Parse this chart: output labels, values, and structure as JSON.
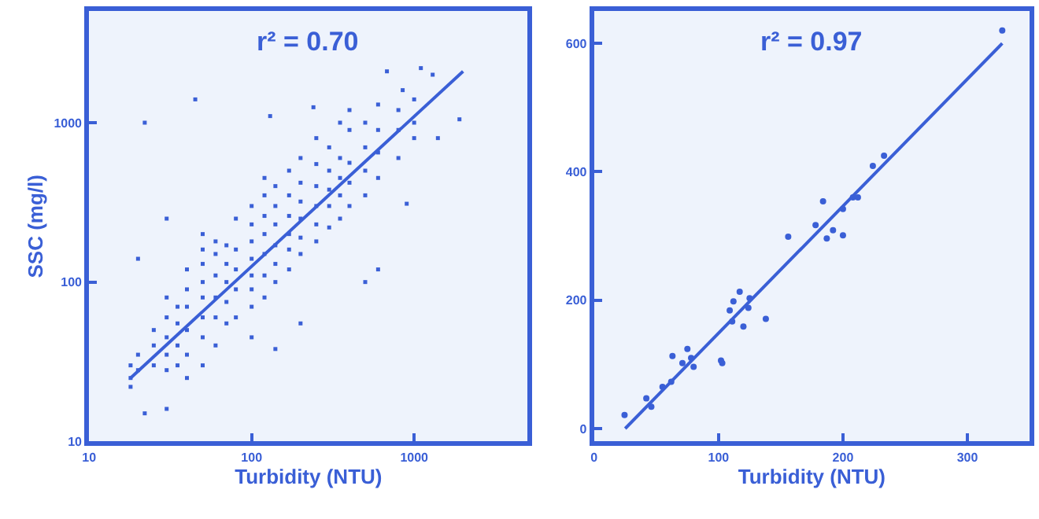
{
  "chart_data": [
    {
      "type": "scatter",
      "xlabel": "Turbidity (NTU)",
      "ylabel": "SSC (mg/l)",
      "log": "xy",
      "xlim": [
        10,
        5000
      ],
      "ylim": [
        10,
        5000
      ],
      "xticks": [
        10,
        100,
        1000
      ],
      "yticks": [
        10,
        100,
        1000
      ],
      "grid": false,
      "annotations": [
        "r² = 0.70"
      ],
      "series": [
        {
          "marker": "square",
          "color": "#3a5fd6",
          "x": [
            22,
            30,
            20,
            30,
            45,
            22,
            240,
            130,
            680,
            1100,
            900,
            600,
            500,
            140,
            200,
            100,
            1900,
            1400,
            850,
            1300,
            18,
            18,
            18,
            20,
            20,
            25,
            25,
            25,
            30,
            30,
            30,
            30,
            30,
            35,
            35,
            35,
            35,
            40,
            40,
            40,
            40,
            40,
            40,
            50,
            50,
            50,
            50,
            50,
            50,
            50,
            50,
            60,
            60,
            60,
            60,
            60,
            60,
            70,
            70,
            70,
            70,
            70,
            80,
            80,
            80,
            80,
            80,
            100,
            100,
            100,
            100,
            100,
            100,
            100,
            120,
            120,
            120,
            120,
            120,
            120,
            120,
            140,
            140,
            140,
            140,
            140,
            140,
            170,
            170,
            170,
            170,
            170,
            170,
            200,
            200,
            200,
            200,
            200,
            200,
            250,
            250,
            250,
            250,
            250,
            250,
            300,
            300,
            300,
            300,
            300,
            350,
            350,
            350,
            350,
            350,
            400,
            400,
            400,
            400,
            400,
            500,
            500,
            500,
            500,
            600,
            600,
            600,
            600,
            800,
            800,
            800,
            1000,
            1000,
            1000
          ],
          "values": [
            15,
            16,
            140,
            250,
            1400,
            1000,
            1250,
            1100,
            2100,
            2200,
            310,
            120,
            100,
            38,
            55,
            45,
            1050,
            800,
            1600,
            2000,
            22,
            25,
            30,
            28,
            35,
            30,
            40,
            50,
            28,
            35,
            45,
            60,
            80,
            30,
            40,
            55,
            70,
            25,
            35,
            50,
            70,
            90,
            120,
            30,
            45,
            60,
            80,
            100,
            130,
            160,
            200,
            40,
            60,
            80,
            110,
            150,
            180,
            55,
            75,
            100,
            130,
            170,
            60,
            90,
            120,
            160,
            250,
            70,
            90,
            110,
            140,
            180,
            230,
            300,
            80,
            110,
            150,
            200,
            260,
            350,
            450,
            100,
            130,
            170,
            230,
            300,
            400,
            120,
            160,
            200,
            260,
            350,
            500,
            150,
            190,
            250,
            320,
            420,
            600,
            180,
            230,
            300,
            400,
            550,
            800,
            220,
            300,
            380,
            500,
            700,
            250,
            350,
            450,
            600,
            1000,
            300,
            420,
            560,
            900,
            1200,
            350,
            500,
            700,
            1000,
            450,
            650,
            900,
            1300,
            600,
            900,
            1200,
            800,
            1000,
            1400
          ]
        },
        {
          "type": "line",
          "marker": "none",
          "color": "#3a5fd6",
          "x": [
            18,
            2000
          ],
          "values": [
            25,
            2100
          ]
        }
      ]
    },
    {
      "type": "scatter",
      "xlabel": "Turbidity (NTU)",
      "xlim": [
        0,
        350
      ],
      "ylim": [
        -20,
        650
      ],
      "xticks": [
        0,
        100,
        200,
        300
      ],
      "yticks": [
        0,
        200,
        400,
        600
      ],
      "grid": false,
      "annotations": [
        "r² = 0.97"
      ],
      "series": [
        {
          "marker": "circle",
          "color": "#3a5fd6",
          "x": [
            24.5,
            42,
            46,
            55,
            63,
            62,
            71,
            75,
            78,
            80,
            102,
            103,
            109,
            112,
            111,
            117,
            120,
            124,
            125,
            138,
            156,
            178,
            184,
            187,
            192,
            200,
            200,
            208,
            212,
            224,
            233,
            328
          ],
          "values": [
            21,
            47,
            34,
            65,
            113,
            73,
            102,
            124,
            110,
            96,
            106,
            102,
            184,
            198,
            167,
            213,
            159,
            188,
            203,
            171,
            299,
            317,
            354,
            296,
            309,
            301,
            342,
            360,
            360,
            409,
            425,
            620
          ]
        },
        {
          "type": "line",
          "marker": "none",
          "color": "#3a5fd6",
          "x": [
            25,
            328
          ],
          "values": [
            0,
            600
          ]
        }
      ]
    }
  ]
}
